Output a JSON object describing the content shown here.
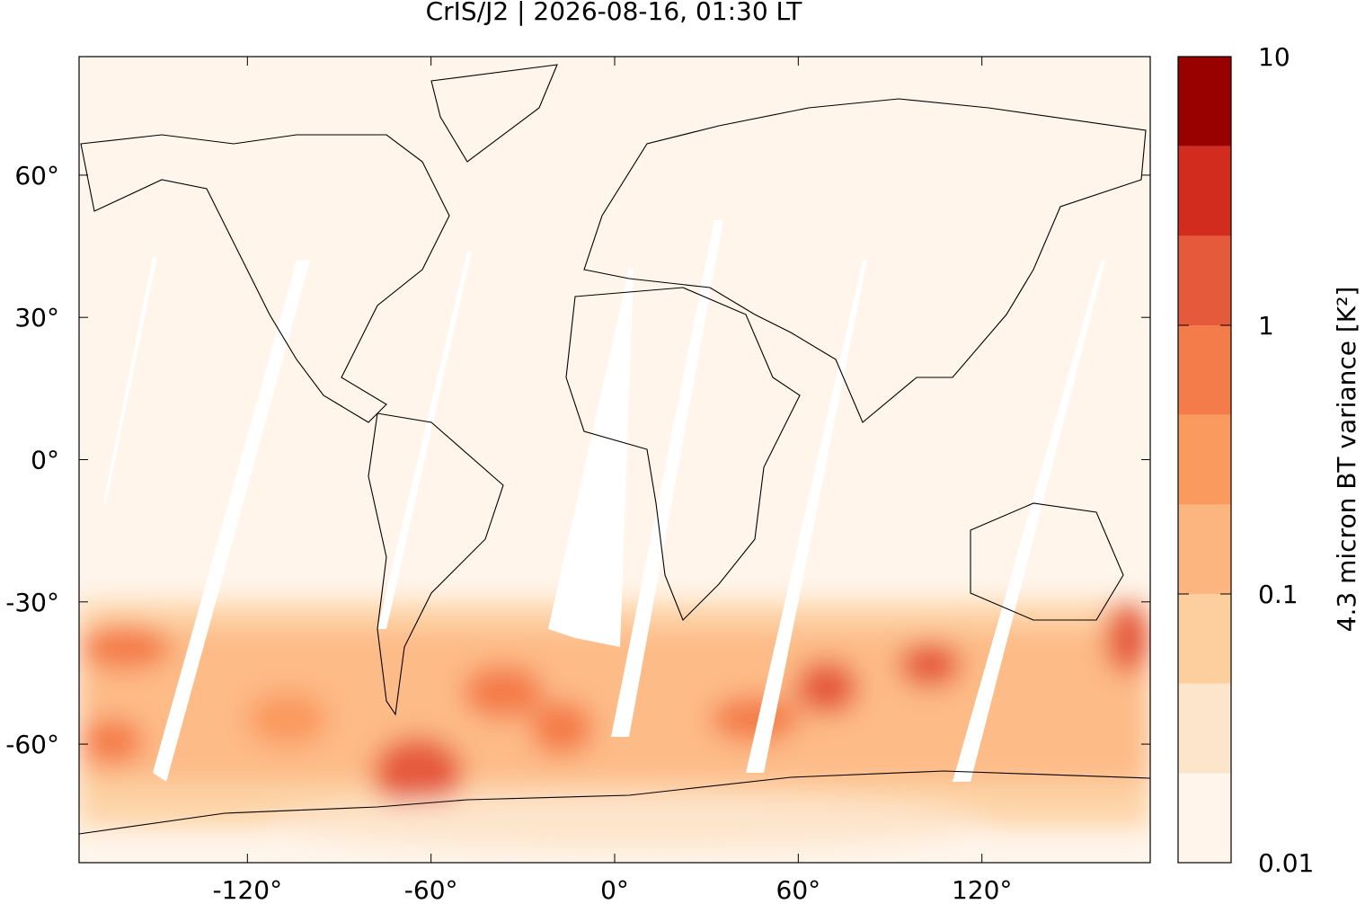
{
  "chart_data": {
    "type": "contour-map",
    "title": "CrIS/J2 | 2026-08-16, 01:30 LT",
    "xlim": [
      -175,
      175
    ],
    "ylim": [
      -85,
      85
    ],
    "xticks": [
      {
        "value": -120,
        "label": "-120°"
      },
      {
        "value": -60,
        "label": "-60°"
      },
      {
        "value": 0,
        "label": "0°"
      },
      {
        "value": 60,
        "label": "60°"
      },
      {
        "value": 120,
        "label": "120°"
      }
    ],
    "yticks": [
      {
        "value": -60,
        "label": "-60°"
      },
      {
        "value": -30,
        "label": "-30°"
      },
      {
        "value": 0,
        "label": "0°"
      },
      {
        "value": 30,
        "label": "30°"
      },
      {
        "value": 60,
        "label": "60°"
      }
    ],
    "colorbar": {
      "label": "4.3 micron BT variance [K²]",
      "log": true,
      "lim": [
        0.01,
        10
      ],
      "ticks": [
        0.01,
        0.1,
        1,
        10
      ],
      "levels": [
        0.01,
        0.0215,
        0.0464,
        0.1,
        0.215,
        0.464,
        1,
        2.15,
        4.64,
        10
      ],
      "colors": [
        "#fff5eb",
        "#fde5cc",
        "#fdcf9e",
        "#fdb57f",
        "#fb9a5e",
        "#f47b4a",
        "#e65a3c",
        "#d12c1e",
        "#990000"
      ]
    }
  }
}
